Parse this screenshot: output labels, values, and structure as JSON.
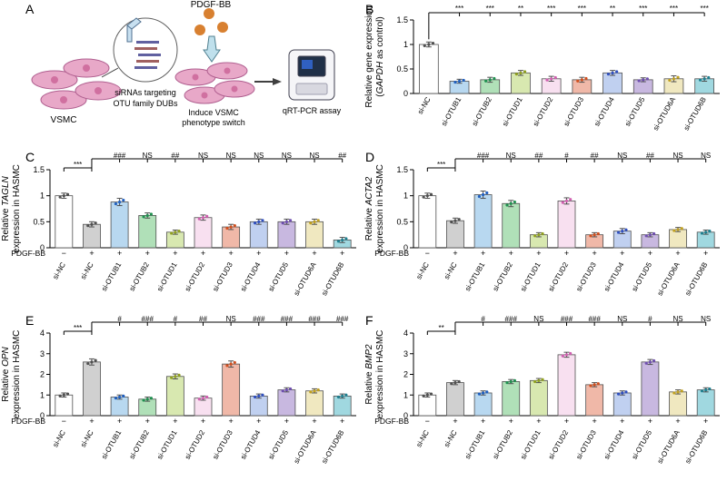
{
  "panelA": {
    "label": "A",
    "pdgf_label": "PDGF-BB",
    "siRNA_label": "siRNAs targeting OTU family DUBs",
    "vsmc_label": "VSMC",
    "induce_label": "Induce VSMC phenotype switch",
    "qrt_label": "qRT-PCR assay",
    "cell_color": "#e8a8c8",
    "cell_core": "#d070a0",
    "pdgf_color": "#d88030",
    "circle_stroke": "#606060",
    "arrow_color": "#404040"
  },
  "panelB": {
    "label": "B",
    "ylabel_line1": "Relative gene expression",
    "ylabel_line2_pre": "(",
    "ylabel_line2_gene": "GAPDH",
    "ylabel_line2_post": " as control)",
    "ylim": [
      0,
      1.5
    ],
    "yticks": [
      0,
      0.5,
      1.0,
      1.5
    ],
    "categories": [
      "si-NC",
      "si-OTUB1",
      "si-OTUB2",
      "si-OTUD1",
      "si-OTUD2",
      "si-OTUD3",
      "si-OTUD4",
      "si-OTUD5",
      "si-OTUD6A",
      "si-OTUD6B"
    ],
    "values": [
      1.0,
      0.25,
      0.28,
      0.42,
      0.3,
      0.28,
      0.42,
      0.28,
      0.3,
      0.3
    ],
    "errors": [
      0.05,
      0.04,
      0.05,
      0.05,
      0.05,
      0.05,
      0.05,
      0.04,
      0.06,
      0.05
    ],
    "sigs": [
      "",
      "***",
      "***",
      "**",
      "***",
      "***",
      "**",
      "***",
      "***",
      "***"
    ],
    "bar_colors": [
      "#ffffff",
      "#b8d8f0",
      "#b0e0b8",
      "#d8e8b0",
      "#f8e0f0",
      "#f0b8a8",
      "#c0d0f0",
      "#c8b8e0",
      "#f0e8c0",
      "#a0d8e0"
    ],
    "point_colors": [
      "#505050",
      "#2060c0",
      "#209050",
      "#90a020",
      "#d060b0",
      "#d05020",
      "#3050c0",
      "#7050b0",
      "#c0a020",
      "#208090"
    ],
    "bar_stroke": "#606060",
    "text_color": "#000000",
    "axis_color": "#000000",
    "fontsize_label": 10,
    "fontsize_tick": 9,
    "fontsize_sig": 9
  },
  "panelC": {
    "label": "C",
    "ylabel_line1_pre": "Relative ",
    "ylabel_line1_gene": "TAGLN",
    "ylabel_line2": "expression in HASMC",
    "ylim": [
      0,
      1.5
    ],
    "yticks": [
      0,
      0.5,
      1.0,
      1.5
    ],
    "treat_label": "PDGF-BB",
    "treat_marks": [
      "−",
      "+",
      "+",
      "+",
      "+",
      "+",
      "+",
      "+",
      "+",
      "+",
      "+"
    ],
    "categories": [
      "si-NC",
      "si-NC",
      "si-OTUB1",
      "si-OTUB2",
      "si-OTUD1",
      "si-OTUD2",
      "si-OTUD3",
      "si-OTUD4",
      "si-OTUD5",
      "si-OTUD6A",
      "si-OTUD6B"
    ],
    "values": [
      1.0,
      0.45,
      0.88,
      0.62,
      0.3,
      0.58,
      0.4,
      0.5,
      0.5,
      0.5,
      0.15
    ],
    "errors": [
      0.05,
      0.05,
      0.07,
      0.05,
      0.04,
      0.05,
      0.05,
      0.05,
      0.05,
      0.05,
      0.05
    ],
    "sigs": [
      "",
      "***",
      "###",
      "NS",
      "##",
      "NS",
      "NS",
      "NS",
      "NS",
      "NS",
      "##"
    ],
    "bar_colors": [
      "#ffffff",
      "#d0d0d0",
      "#b8d8f0",
      "#b0e0b8",
      "#d8e8b0",
      "#f8e0f0",
      "#f0b8a8",
      "#c0d0f0",
      "#c8b8e0",
      "#f0e8c0",
      "#a0d8e0"
    ],
    "point_colors": [
      "#505050",
      "#505050",
      "#2060c0",
      "#209050",
      "#90a020",
      "#d060b0",
      "#d05020",
      "#3050c0",
      "#7050b0",
      "#c0a020",
      "#208090"
    ]
  },
  "panelD": {
    "label": "D",
    "ylabel_line1_pre": "Relative ",
    "ylabel_line1_gene": "ACTA2",
    "ylabel_line2": "expression in HASMC",
    "ylim": [
      0,
      1.5
    ],
    "yticks": [
      0,
      0.5,
      1.0,
      1.5
    ],
    "treat_label": "PDGF-BB",
    "treat_marks": [
      "−",
      "+",
      "+",
      "+",
      "+",
      "+",
      "+",
      "+",
      "+",
      "+",
      "+"
    ],
    "categories": [
      "si-NC",
      "si-NC",
      "si-OTUB1",
      "si-OTUB2",
      "si-OTUD1",
      "si-OTUD2",
      "si-OTUD3",
      "si-OTUD4",
      "si-OTUD5",
      "si-OTUD6A",
      "si-OTUD6B"
    ],
    "values": [
      1.0,
      0.52,
      1.02,
      0.85,
      0.25,
      0.9,
      0.25,
      0.32,
      0.25,
      0.35,
      0.3
    ],
    "errors": [
      0.05,
      0.05,
      0.07,
      0.06,
      0.04,
      0.06,
      0.04,
      0.05,
      0.04,
      0.04,
      0.04
    ],
    "sigs": [
      "",
      "***",
      "###",
      "NS",
      "##",
      "#",
      "##",
      "NS",
      "##",
      "NS",
      "NS"
    ],
    "bar_colors": [
      "#ffffff",
      "#d0d0d0",
      "#b8d8f0",
      "#b0e0b8",
      "#d8e8b0",
      "#f8e0f0",
      "#f0b8a8",
      "#c0d0f0",
      "#c8b8e0",
      "#f0e8c0",
      "#a0d8e0"
    ],
    "point_colors": [
      "#505050",
      "#505050",
      "#2060c0",
      "#209050",
      "#90a020",
      "#d060b0",
      "#d05020",
      "#3050c0",
      "#7050b0",
      "#c0a020",
      "#208090"
    ]
  },
  "panelE": {
    "label": "E",
    "ylabel_line1_pre": "Relative ",
    "ylabel_line1_gene": "OPN",
    "ylabel_line2": "expression in HASMC",
    "ylim": [
      0,
      4
    ],
    "yticks": [
      0,
      1,
      2,
      3,
      4
    ],
    "treat_label": "PDGF-BB",
    "treat_marks": [
      "−",
      "+",
      "+",
      "+",
      "+",
      "+",
      "+",
      "+",
      "+",
      "+",
      "+"
    ],
    "categories": [
      "si-NC",
      "si-NC",
      "si-OTUB1",
      "si-OTUB2",
      "si-OTUD1",
      "si-OTUD2",
      "si-OTUD3",
      "si-OTUD4",
      "si-OTUD5",
      "si-OTUD6A",
      "si-OTUD6B"
    ],
    "values": [
      1.0,
      2.6,
      0.9,
      0.8,
      1.9,
      0.85,
      2.5,
      0.95,
      1.25,
      1.2,
      0.95
    ],
    "errors": [
      0.1,
      0.15,
      0.1,
      0.1,
      0.12,
      0.1,
      0.15,
      0.1,
      0.1,
      0.1,
      0.1
    ],
    "sigs": [
      "",
      "***",
      "#",
      "###",
      "#",
      "##",
      "NS",
      "###",
      "###",
      "###",
      "###"
    ],
    "bar_colors": [
      "#ffffff",
      "#d0d0d0",
      "#b8d8f0",
      "#b0e0b8",
      "#d8e8b0",
      "#f8e0f0",
      "#f0b8a8",
      "#c0d0f0",
      "#c8b8e0",
      "#f0e8c0",
      "#a0d8e0"
    ],
    "point_colors": [
      "#505050",
      "#505050",
      "#2060c0",
      "#209050",
      "#90a020",
      "#d060b0",
      "#d05020",
      "#3050c0",
      "#7050b0",
      "#c0a020",
      "#208090"
    ]
  },
  "panelF": {
    "label": "F",
    "ylabel_line1_pre": "Relative ",
    "ylabel_line1_gene": "BMP2",
    "ylabel_line2": "expression in HASMC",
    "ylim": [
      0,
      4
    ],
    "yticks": [
      0,
      1,
      2,
      3,
      4
    ],
    "treat_label": "PDGF-BB",
    "treat_marks": [
      "−",
      "+",
      "+",
      "+",
      "+",
      "+",
      "+",
      "+",
      "+",
      "+",
      "+"
    ],
    "categories": [
      "si-NC",
      "si-NC",
      "si-OTUB1",
      "si-OTUB2",
      "si-OTUD1",
      "si-OTUD2",
      "si-OTUD3",
      "si-OTUD4",
      "si-OTUD5",
      "si-OTUD6A",
      "si-OTUD6B"
    ],
    "values": [
      1.0,
      1.6,
      1.1,
      1.65,
      1.7,
      2.95,
      1.5,
      1.1,
      2.6,
      1.15,
      1.25
    ],
    "errors": [
      0.1,
      0.1,
      0.1,
      0.1,
      0.1,
      0.12,
      0.1,
      0.1,
      0.12,
      0.1,
      0.1
    ],
    "sigs": [
      "",
      "**",
      "#",
      "###",
      "NS",
      "###",
      "###",
      "NS",
      "#",
      "NS",
      "NS"
    ],
    "bar_colors": [
      "#ffffff",
      "#d0d0d0",
      "#b8d8f0",
      "#b0e0b8",
      "#d8e8b0",
      "#f8e0f0",
      "#f0b8a8",
      "#c0d0f0",
      "#c8b8e0",
      "#f0e8c0",
      "#a0d8e0"
    ],
    "point_colors": [
      "#505050",
      "#505050",
      "#2060c0",
      "#209050",
      "#90a020",
      "#d060b0",
      "#d05020",
      "#3050c0",
      "#7050b0",
      "#c0a020",
      "#208090"
    ]
  },
  "chart_style": {
    "bar_stroke": "#505050",
    "axis_color": "#000000",
    "bracket_color": "#000000",
    "fontsize_axis_label": 10,
    "fontsize_tick": 9,
    "fontsize_sig": 8,
    "fontsize_cat": 8
  }
}
